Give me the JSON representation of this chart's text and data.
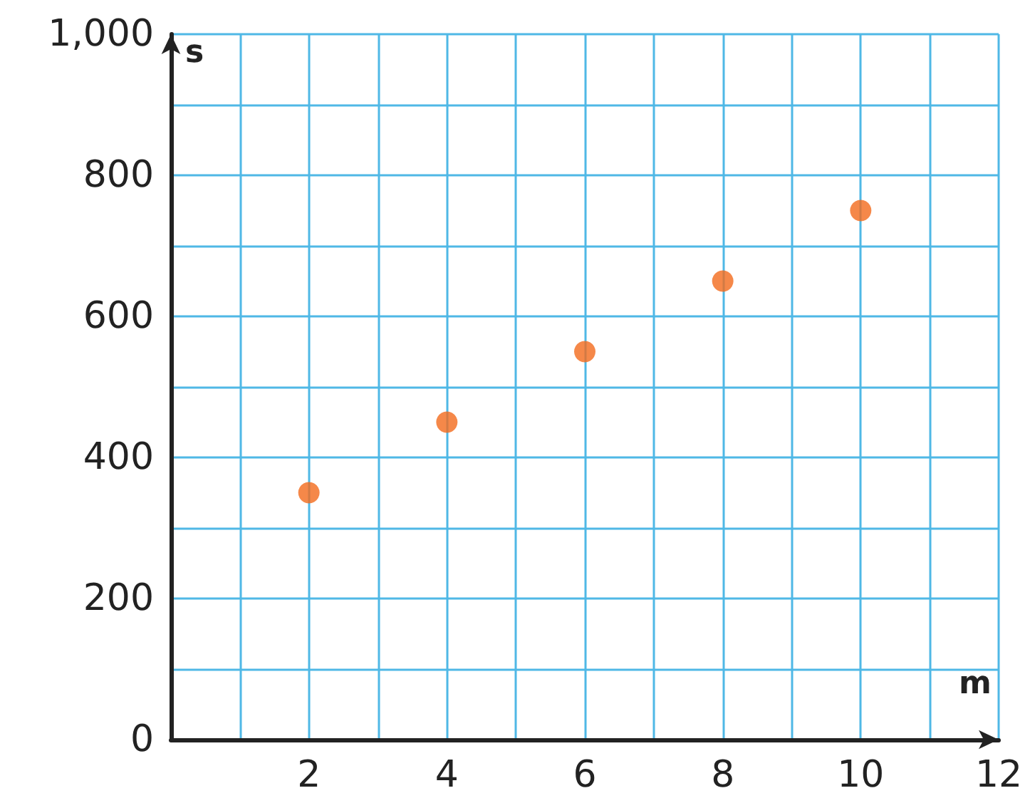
{
  "chart_data": {
    "type": "scatter",
    "xlabel": "m",
    "ylabel": "s",
    "x": [
      2,
      4,
      6,
      8,
      10
    ],
    "values": [
      350,
      450,
      550,
      650,
      750
    ],
    "color": "#f26a1b",
    "marker": "circle",
    "grid": true,
    "xlim": [
      0,
      12
    ],
    "xticks": [
      {
        "value": 0,
        "label": null
      },
      {
        "value": 1,
        "label": null
      },
      2,
      {
        "value": 3,
        "label": null
      },
      4,
      {
        "value": 5,
        "label": null
      },
      6,
      {
        "value": 7,
        "label": null
      },
      8,
      {
        "value": 9,
        "label": null
      },
      10,
      {
        "value": 11,
        "label": null
      },
      12
    ],
    "ylim": [
      0,
      1000
    ],
    "yticks": [
      0,
      {
        "value": 100,
        "label": null
      },
      200,
      {
        "value": 300,
        "label": null
      },
      400,
      {
        "value": 500,
        "label": null
      },
      600,
      {
        "value": 700,
        "label": null
      },
      800,
      {
        "value": 900,
        "label": null
      },
      {
        "value": 1000,
        "label": "1,000"
      }
    ]
  }
}
